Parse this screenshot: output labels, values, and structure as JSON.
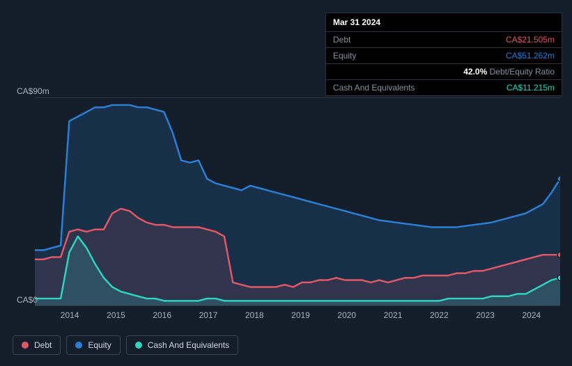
{
  "chart": {
    "type": "area",
    "background_color": "#141e2b",
    "grid_color": "#2a3340",
    "text_color": "#a8b2bf",
    "ylim": [
      0,
      90
    ],
    "y_label_top": "CA$90m",
    "y_label_bottom": "CA$0",
    "x_categories": [
      "2014",
      "2015",
      "2016",
      "2017",
      "2018",
      "2019",
      "2020",
      "2021",
      "2022",
      "2023",
      "2024"
    ],
    "series": [
      {
        "name": "Equity",
        "color": "#2a7fd4",
        "fill_opacity": 0.18,
        "line_width": 2.5,
        "data": [
          24,
          24,
          25,
          26,
          80,
          82,
          84,
          86,
          86,
          87,
          87,
          87,
          86,
          86,
          85,
          84,
          75,
          63,
          62,
          63,
          55,
          53,
          52,
          51,
          50,
          52,
          51,
          50,
          49,
          48,
          47,
          46,
          45,
          44,
          43,
          42,
          41,
          40,
          39,
          38,
          37,
          36.5,
          36,
          35.5,
          35,
          34.5,
          34,
          34,
          34,
          34,
          34.5,
          35,
          35.5,
          36,
          37,
          38,
          39,
          40,
          42,
          44,
          49,
          55
        ]
      },
      {
        "name": "Debt",
        "color": "#e15864",
        "fill_opacity": 0.12,
        "line_width": 2.5,
        "data": [
          20,
          20,
          21,
          21,
          32,
          33,
          32,
          33,
          33,
          40,
          42,
          41,
          38,
          36,
          35,
          35,
          34,
          34,
          34,
          34,
          33,
          32,
          30,
          10,
          9,
          8,
          8,
          8,
          8,
          9,
          8,
          10,
          10,
          11,
          11,
          12,
          11,
          11,
          11,
          10,
          11,
          10,
          11,
          12,
          12,
          13,
          13,
          13,
          13,
          14,
          14,
          15,
          15,
          16,
          17,
          18,
          19,
          20,
          21,
          22,
          22,
          22
        ]
      },
      {
        "name": "Cash And Equivalents",
        "color": "#2fd4bf",
        "fill_opacity": 0.18,
        "line_width": 2.5,
        "data": [
          3,
          3,
          3,
          3,
          23,
          30,
          25,
          18,
          12,
          8,
          6,
          5,
          4,
          3,
          3,
          2,
          2,
          2,
          2,
          2,
          3,
          3,
          2,
          2,
          2,
          2,
          2,
          2,
          2,
          2,
          2,
          2,
          2,
          2,
          2,
          2,
          2,
          2,
          2,
          2,
          2,
          2,
          2,
          2,
          2,
          2,
          2,
          2,
          3,
          3,
          3,
          3,
          3,
          4,
          4,
          4,
          5,
          5,
          7,
          9,
          11,
          12
        ]
      }
    ],
    "end_markers": [
      {
        "color": "#2a7fd4",
        "value": 55
      },
      {
        "color": "#e15864",
        "value": 22
      },
      {
        "color": "#2fd4bf",
        "value": 12
      }
    ]
  },
  "tooltip": {
    "date": "Mar 31 2024",
    "rows": [
      {
        "label": "Debt",
        "value": "CA$21.505m",
        "color": "#e15864"
      },
      {
        "label": "Equity",
        "value": "CA$51.262m",
        "color": "#2a7fd4"
      },
      {
        "label": "",
        "value_strong": "42.0%",
        "value_rest": " Debt/Equity Ratio",
        "color_strong": "#ffffff",
        "color_rest": "#8a93a1"
      },
      {
        "label": "Cash And Equivalents",
        "value": "CA$11.215m",
        "color": "#2fd4bf"
      }
    ]
  },
  "legend": {
    "items": [
      {
        "label": "Debt",
        "color": "#e15864"
      },
      {
        "label": "Equity",
        "color": "#2a7fd4"
      },
      {
        "label": "Cash And Equivalents",
        "color": "#2fd4bf"
      }
    ]
  }
}
